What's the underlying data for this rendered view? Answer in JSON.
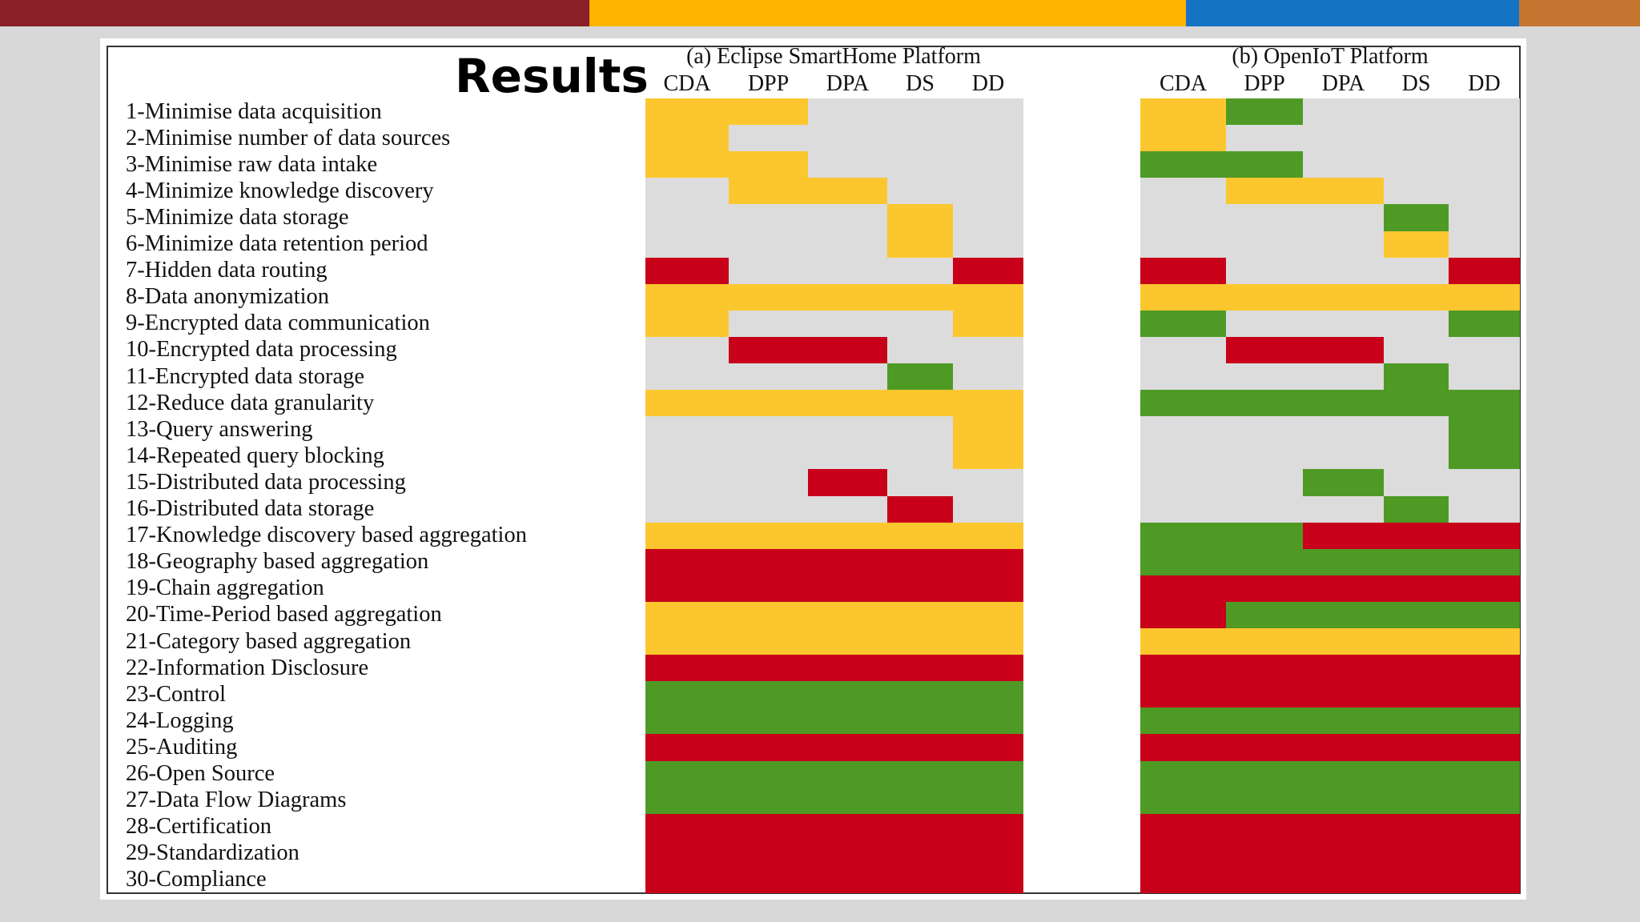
{
  "slide_title": "Results",
  "header_band_colors": [
    "#8b1f27",
    "#ffb400",
    "#1573c4",
    "#c4752f"
  ],
  "status_colors": {
    "none": "#dcdcdc",
    "low": "#c8001a",
    "medium": "#fcc72e",
    "high": "#4e9a25"
  },
  "chart_data": {
    "type": "heatmap",
    "columns": [
      "CDA",
      "DPP",
      "DPA",
      "DS",
      "DD"
    ],
    "rows": [
      "1-Minimise data acquisition",
      "2-Minimise number of data sources",
      "3-Minimise raw data intake",
      "4-Minimize knowledge discovery",
      "5-Minimize data storage",
      "6-Minimize data retention period",
      "7-Hidden data routing",
      "8-Data anonymization",
      "9-Encrypted data communication",
      "10-Encrypted data processing",
      "11-Encrypted data storage",
      "12-Reduce data granularity",
      "13-Query answering",
      "14-Repeated query blocking",
      "15-Distributed data processing",
      "16-Distributed data storage",
      "17-Knowledge discovery based aggregation",
      "18-Geography based aggregation",
      "19-Chain aggregation",
      "20-Time-Period based aggregation",
      "21-Category based aggregation",
      "22-Information Disclosure",
      "23-Control",
      "24-Logging",
      "25-Auditing",
      "26-Open Source",
      "27-Data Flow Diagrams",
      "28-Certification",
      "29-Standardization",
      "30-Compliance"
    ],
    "panels": [
      {
        "title": "(a) Eclipse SmartHome Platform",
        "cells": [
          [
            "medium",
            "medium",
            "none",
            "none",
            "none"
          ],
          [
            "medium",
            "none",
            "none",
            "none",
            "none"
          ],
          [
            "medium",
            "medium",
            "none",
            "none",
            "none"
          ],
          [
            "none",
            "medium",
            "medium",
            "none",
            "none"
          ],
          [
            "none",
            "none",
            "none",
            "medium",
            "none"
          ],
          [
            "none",
            "none",
            "none",
            "medium",
            "none"
          ],
          [
            "low",
            "none",
            "none",
            "none",
            "low"
          ],
          [
            "medium",
            "medium",
            "medium",
            "medium",
            "medium"
          ],
          [
            "medium",
            "none",
            "none",
            "none",
            "medium"
          ],
          [
            "none",
            "low",
            "low",
            "none",
            "none"
          ],
          [
            "none",
            "none",
            "none",
            "high",
            "none"
          ],
          [
            "medium",
            "medium",
            "medium",
            "medium",
            "medium"
          ],
          [
            "none",
            "none",
            "none",
            "none",
            "medium"
          ],
          [
            "none",
            "none",
            "none",
            "none",
            "medium"
          ],
          [
            "none",
            "none",
            "low",
            "none",
            "none"
          ],
          [
            "none",
            "none",
            "none",
            "low",
            "none"
          ],
          [
            "medium",
            "medium",
            "medium",
            "medium",
            "medium"
          ],
          [
            "low",
            "low",
            "low",
            "low",
            "low"
          ],
          [
            "low",
            "low",
            "low",
            "low",
            "low"
          ],
          [
            "medium",
            "medium",
            "medium",
            "medium",
            "medium"
          ],
          [
            "medium",
            "medium",
            "medium",
            "medium",
            "medium"
          ],
          [
            "low",
            "low",
            "low",
            "low",
            "low"
          ],
          [
            "high",
            "high",
            "high",
            "high",
            "high"
          ],
          [
            "high",
            "high",
            "high",
            "high",
            "high"
          ],
          [
            "low",
            "low",
            "low",
            "low",
            "low"
          ],
          [
            "high",
            "high",
            "high",
            "high",
            "high"
          ],
          [
            "high",
            "high",
            "high",
            "high",
            "high"
          ],
          [
            "low",
            "low",
            "low",
            "low",
            "low"
          ],
          [
            "low",
            "low",
            "low",
            "low",
            "low"
          ],
          [
            "low",
            "low",
            "low",
            "low",
            "low"
          ]
        ]
      },
      {
        "title": "(b) OpenIoT Platform",
        "cells": [
          [
            "medium",
            "high",
            "none",
            "none",
            "none"
          ],
          [
            "medium",
            "none",
            "none",
            "none",
            "none"
          ],
          [
            "high",
            "high",
            "none",
            "none",
            "none"
          ],
          [
            "none",
            "medium",
            "medium",
            "none",
            "none"
          ],
          [
            "none",
            "none",
            "none",
            "high",
            "none"
          ],
          [
            "none",
            "none",
            "none",
            "medium",
            "none"
          ],
          [
            "low",
            "none",
            "none",
            "none",
            "low"
          ],
          [
            "medium",
            "medium",
            "medium",
            "medium",
            "medium"
          ],
          [
            "high",
            "none",
            "none",
            "none",
            "high"
          ],
          [
            "none",
            "low",
            "low",
            "none",
            "none"
          ],
          [
            "none",
            "none",
            "none",
            "high",
            "none"
          ],
          [
            "high",
            "high",
            "high",
            "high",
            "high"
          ],
          [
            "none",
            "none",
            "none",
            "none",
            "high"
          ],
          [
            "none",
            "none",
            "none",
            "none",
            "high"
          ],
          [
            "none",
            "none",
            "high",
            "none",
            "none"
          ],
          [
            "none",
            "none",
            "none",
            "high",
            "none"
          ],
          [
            "high",
            "high",
            "low",
            "low",
            "low"
          ],
          [
            "high",
            "high",
            "high",
            "high",
            "high"
          ],
          [
            "low",
            "low",
            "low",
            "low",
            "low"
          ],
          [
            "low",
            "high",
            "high",
            "high",
            "high"
          ],
          [
            "medium",
            "medium",
            "medium",
            "medium",
            "medium"
          ],
          [
            "low",
            "low",
            "low",
            "low",
            "low"
          ],
          [
            "low",
            "low",
            "low",
            "low",
            "low"
          ],
          [
            "high",
            "high",
            "high",
            "high",
            "high"
          ],
          [
            "low",
            "low",
            "low",
            "low",
            "low"
          ],
          [
            "high",
            "high",
            "high",
            "high",
            "high"
          ],
          [
            "high",
            "high",
            "high",
            "high",
            "high"
          ],
          [
            "low",
            "low",
            "low",
            "low",
            "low"
          ],
          [
            "low",
            "low",
            "low",
            "low",
            "low"
          ],
          [
            "low",
            "low",
            "low",
            "low",
            "low"
          ]
        ]
      }
    ]
  }
}
